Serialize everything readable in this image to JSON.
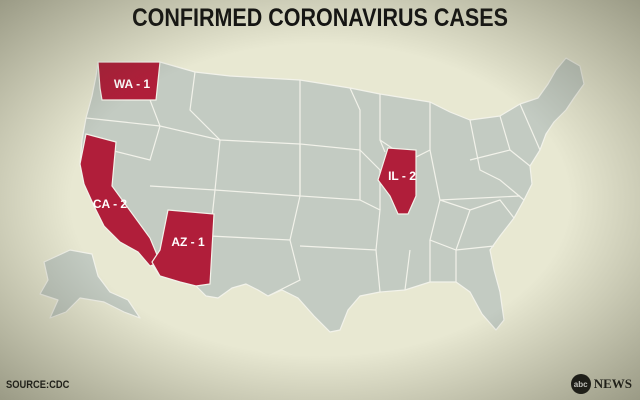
{
  "title": "CONFIRMED  CORONAVIRUS CASES",
  "source": "SOURCE:CDC",
  "logo": {
    "mark": "abc",
    "text": "NEWS"
  },
  "colors": {
    "highlight": "#b01e3a",
    "land": "#c3cbc2",
    "background": "#e8e8d2"
  },
  "states": [
    {
      "id": "wa",
      "label": "WA - 1",
      "cases": 1
    },
    {
      "id": "ca",
      "label": "CA - 2",
      "cases": 2
    },
    {
      "id": "az",
      "label": "AZ - 1",
      "cases": 1
    },
    {
      "id": "il",
      "label": "IL - 2",
      "cases": 2
    }
  ]
}
